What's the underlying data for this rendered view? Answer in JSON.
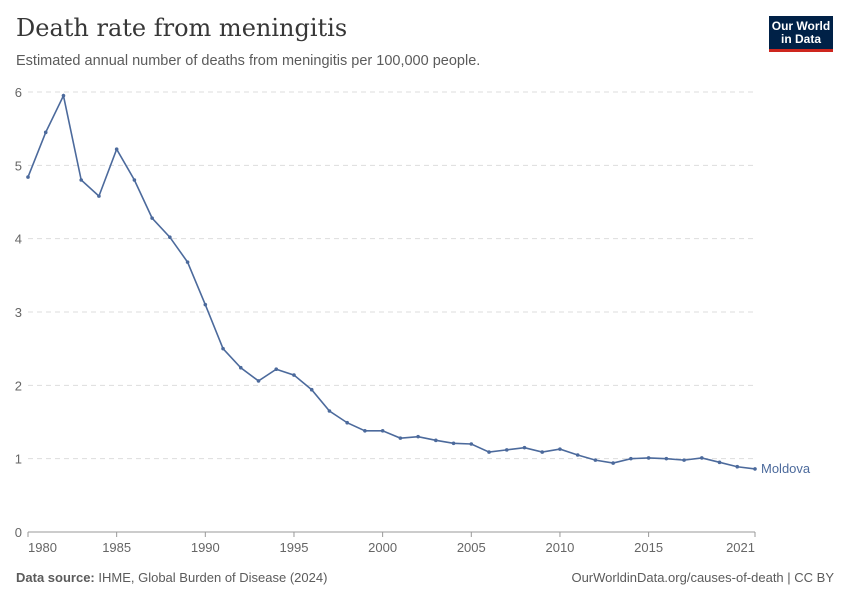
{
  "header": {
    "title": "Death rate from meningitis",
    "subtitle": "Estimated annual number of deaths from meningitis per 100,000 people.",
    "logo": "Our World in Data"
  },
  "footer": {
    "source_label": "Data source:",
    "source": "IHME, Global Burden of Disease (2024)",
    "link": "OurWorldinData.org/causes-of-death | CC BY"
  },
  "chart_data": {
    "type": "line",
    "title": "Death rate from meningitis",
    "xlabel": "",
    "ylabel": "",
    "xlim": [
      1980,
      2021
    ],
    "ylim": [
      0,
      6
    ],
    "y_ticks": [
      "0",
      "1",
      "2",
      "3",
      "4",
      "5",
      "6"
    ],
    "x_ticks": [
      "1980",
      "1985",
      "1990",
      "1995",
      "2000",
      "2005",
      "2010",
      "2015",
      "2021"
    ],
    "grid": "horizontal dashed",
    "color": "#4c6a9c",
    "series": [
      {
        "name": "Moldova",
        "x": [
          1980,
          1981,
          1982,
          1983,
          1984,
          1985,
          1986,
          1987,
          1988,
          1989,
          1990,
          1991,
          1992,
          1993,
          1994,
          1995,
          1996,
          1997,
          1998,
          1999,
          2000,
          2001,
          2002,
          2003,
          2004,
          2005,
          2006,
          2007,
          2008,
          2009,
          2010,
          2011,
          2012,
          2013,
          2014,
          2015,
          2016,
          2017,
          2018,
          2019,
          2020,
          2021
        ],
        "values": [
          4.84,
          5.45,
          5.95,
          4.8,
          4.58,
          5.22,
          4.8,
          4.28,
          4.02,
          3.68,
          3.1,
          2.5,
          2.24,
          2.06,
          2.22,
          2.14,
          1.94,
          1.65,
          1.49,
          1.38,
          1.38,
          1.28,
          1.3,
          1.25,
          1.21,
          1.2,
          1.09,
          1.12,
          1.15,
          1.09,
          1.13,
          1.05,
          0.98,
          0.94,
          1.0,
          1.01,
          1.0,
          0.98,
          1.01,
          0.95,
          0.89,
          0.86
        ]
      }
    ]
  }
}
